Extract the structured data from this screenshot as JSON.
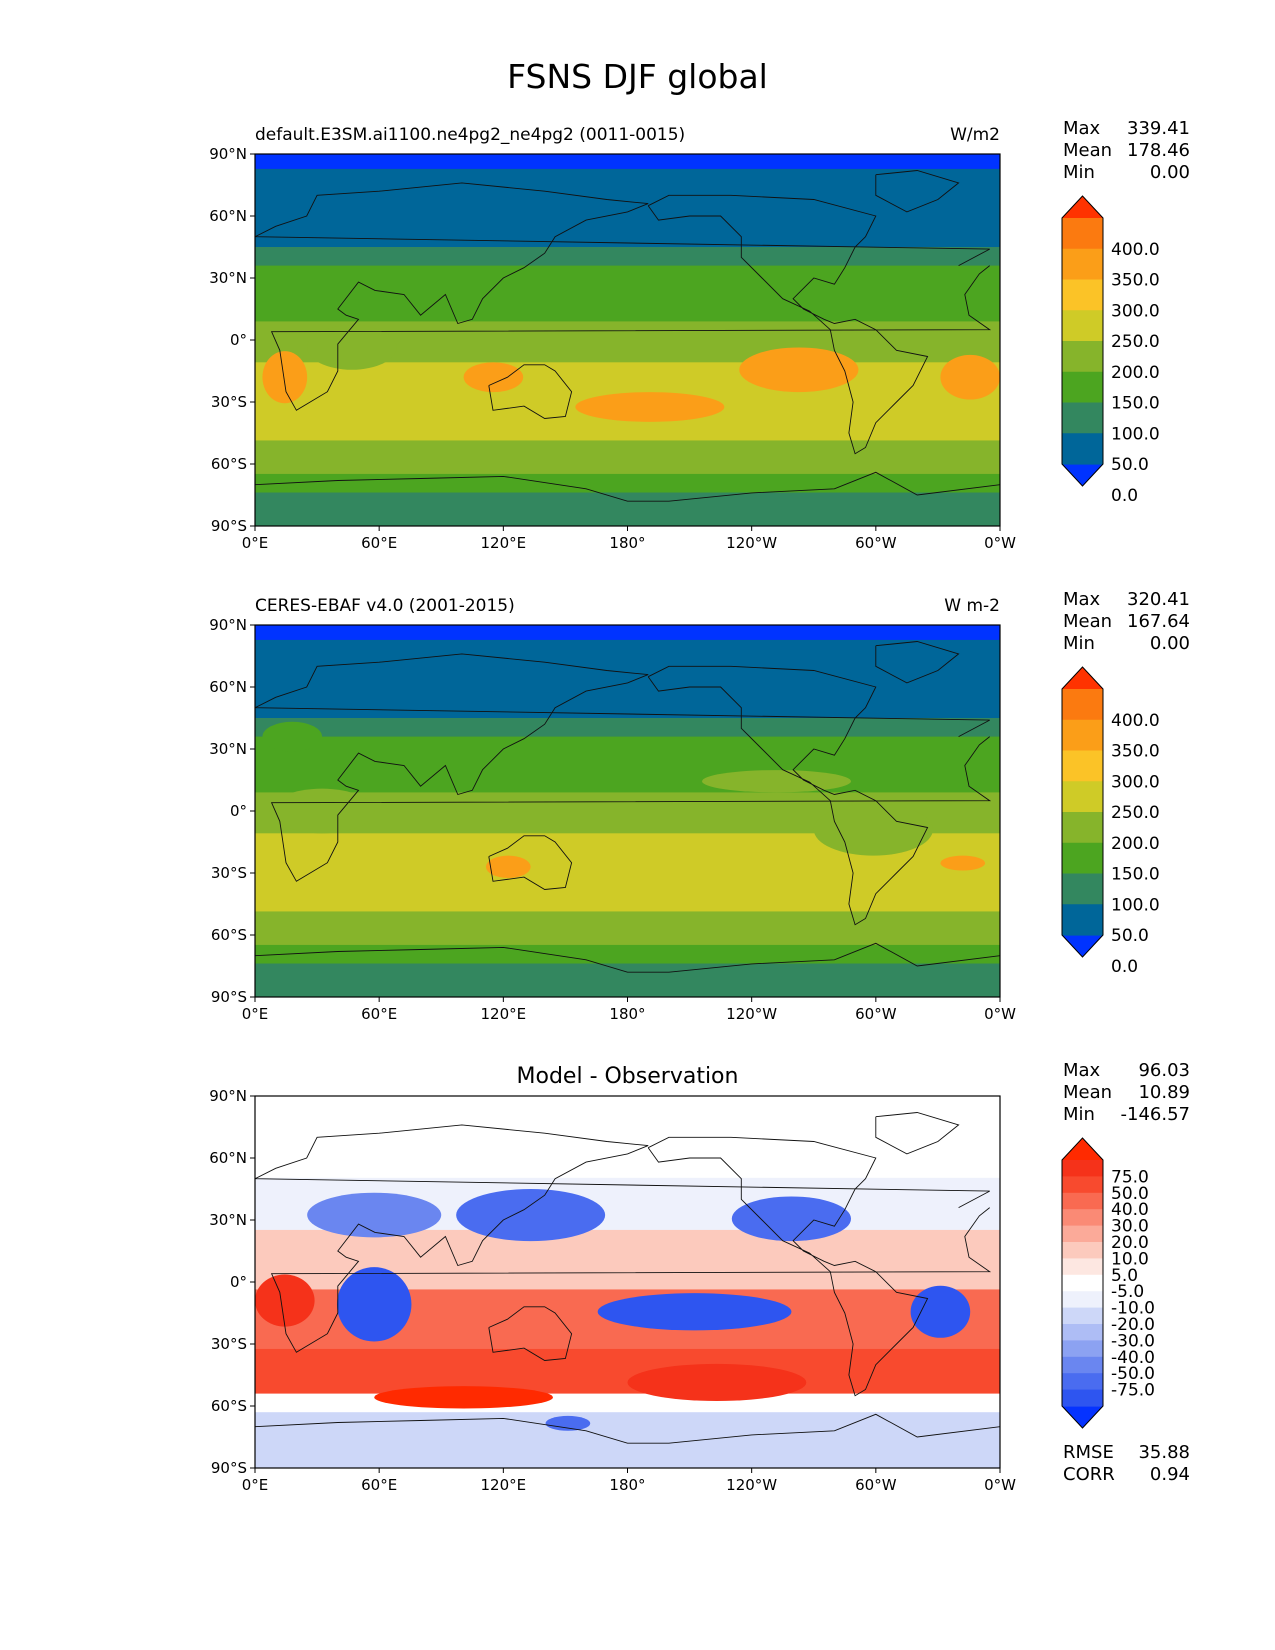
{
  "figure": {
    "title": "FSNS DJF global"
  },
  "axes": {
    "lat_ticks": [
      "90°N",
      "60°N",
      "30°N",
      "0°",
      "30°S",
      "60°S",
      "90°S"
    ],
    "lon_ticks": [
      "0°E",
      "60°E",
      "120°E",
      "180°",
      "120°W",
      "60°W",
      "0°W"
    ]
  },
  "panels": [
    {
      "id": "model",
      "left_title": "default.E3SM.ai1100.ne4pg2_ne4pg2 (0011-0015)",
      "center_title": "",
      "right_title": "W/m2",
      "stats": [
        {
          "label": "Max",
          "value": "339.41"
        },
        {
          "label": "Mean",
          "value": "178.46"
        },
        {
          "label": "Min",
          "value": "0.00"
        }
      ],
      "colorbar": {
        "colors": [
          "#0033ff",
          "#006699",
          "#33875f",
          "#4ca520",
          "#86b42b",
          "#cfcb27",
          "#fbc327",
          "#fb9e18",
          "#fb7a10",
          "#ff3300"
        ],
        "labels": [
          "0.0",
          "50.0",
          "100.0",
          "150.0",
          "200.0",
          "250.0",
          "300.0",
          "350.0",
          "400.0"
        ]
      },
      "extra_stats": []
    },
    {
      "id": "obs",
      "left_title": "CERES-EBAF v4.0 (2001-2015)",
      "center_title": "",
      "right_title": "W m-2",
      "stats": [
        {
          "label": "Max",
          "value": "320.41"
        },
        {
          "label": "Mean",
          "value": "167.64"
        },
        {
          "label": "Min",
          "value": "0.00"
        }
      ],
      "colorbar": {
        "colors": [
          "#0033ff",
          "#006699",
          "#33875f",
          "#4ca520",
          "#86b42b",
          "#cfcb27",
          "#fbc327",
          "#fb9e18",
          "#fb7a10",
          "#ff3300"
        ],
        "labels": [
          "0.0",
          "50.0",
          "100.0",
          "150.0",
          "200.0",
          "250.0",
          "300.0",
          "350.0",
          "400.0"
        ]
      },
      "extra_stats": []
    },
    {
      "id": "diff",
      "left_title": "",
      "center_title": "Model - Observation",
      "right_title": "",
      "stats": [
        {
          "label": "Max",
          "value": "96.03"
        },
        {
          "label": "Mean",
          "value": "10.89"
        },
        {
          "label": "Min",
          "value": "-146.57"
        }
      ],
      "colorbar": {
        "colors": [
          "#0533ff",
          "#2e55f0",
          "#4a6cf0",
          "#6a86f0",
          "#8ca2f2",
          "#aebdf5",
          "#cdd7f8",
          "#eef1fc",
          "#ffffff",
          "#fde7e1",
          "#fccabd",
          "#fbaa99",
          "#fa8a75",
          "#f96a51",
          "#f84a2e",
          "#f5321a",
          "#ff2a00"
        ],
        "labels": [
          "-75.0",
          "-50.0",
          "-40.0",
          "-30.0",
          "-20.0",
          "-10.0",
          "-5.0",
          "5.0",
          "10.0",
          "20.0",
          "30.0",
          "40.0",
          "50.0",
          "75.0"
        ]
      },
      "extra_stats": [
        {
          "label": "RMSE",
          "value": "35.88"
        },
        {
          "label": "CORR",
          "value": "0.94"
        }
      ]
    }
  ]
}
